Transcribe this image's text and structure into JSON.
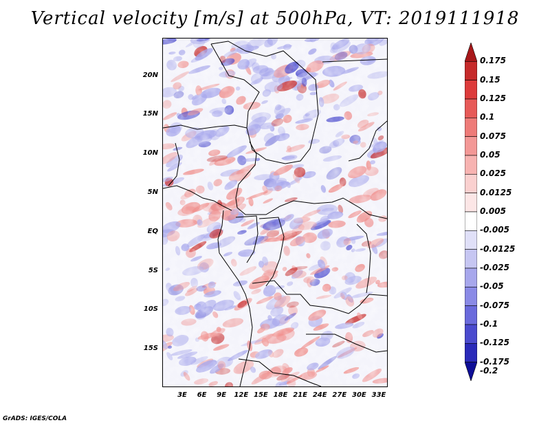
{
  "title": "Vertical velocity [m/s] at 500hPa, VT: 2019111918",
  "credit": "GrADS: IGES/COLA",
  "colorbar": {
    "labels_top_to_bottom": [
      "0.175",
      "0.15",
      "0.125",
      "0.1",
      "0.075",
      "0.05",
      "0.025",
      "0.0125",
      "0.005",
      "-0.005",
      "-0.0125",
      "-0.025",
      "-0.05",
      "-0.075",
      "-0.1",
      "-0.125",
      "-0.175",
      "-0.2"
    ],
    "colors_top_to_bottom": [
      "#a8181a",
      "#c62a2a",
      "#dd3b3b",
      "#e75a58",
      "#ee7b78",
      "#f39896",
      "#f7b3b1",
      "#fad0cf",
      "#fce6e6",
      "#ffffff",
      "#e0e0f8",
      "#c6c6f2",
      "#a7a7ec",
      "#8a8ae6",
      "#6a6adc",
      "#4a4ace",
      "#2a2ab9",
      "#0e0e97"
    ],
    "top_arrow_color": "#a8181a",
    "bottom_arrow_color": "#0e0e97"
  },
  "axes": {
    "lat_labels": [
      "20N",
      "15N",
      "10N",
      "5N",
      "EQ",
      "5S",
      "10S",
      "15S"
    ],
    "lon_labels": [
      "3E",
      "6E",
      "9E",
      "12E",
      "15E",
      "18E",
      "21E",
      "24E",
      "27E",
      "30E",
      "33E"
    ]
  },
  "field_colors": {
    "positive": "#f0908e",
    "positive_strong": "#c62a2a",
    "negative": "#a7a7ec",
    "negative_strong": "#4a4ace",
    "neutral": "#f4f4fb"
  }
}
